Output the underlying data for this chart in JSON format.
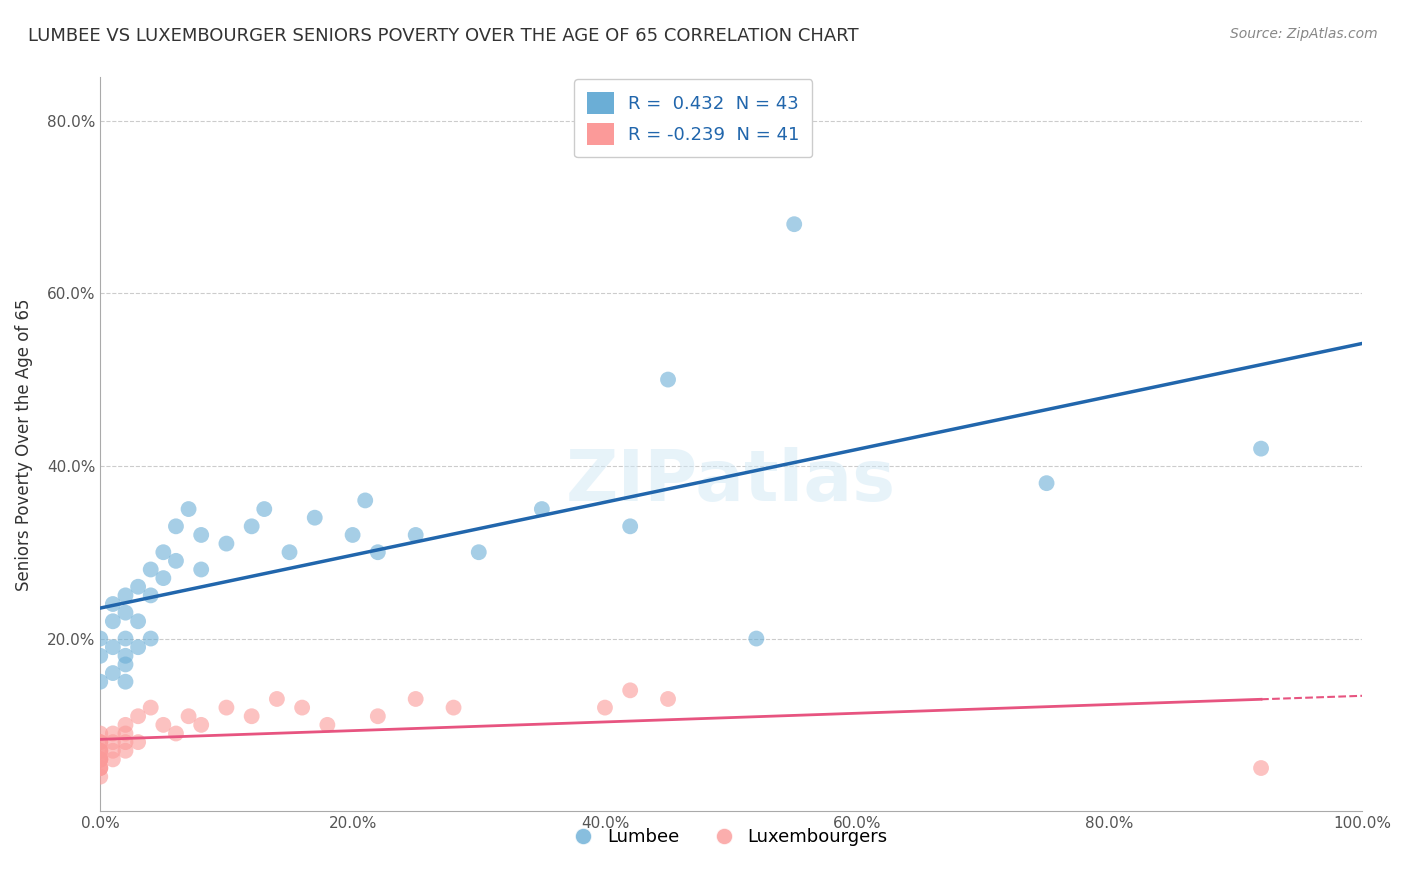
{
  "title": "LUMBEE VS LUXEMBOURGER SENIORS POVERTY OVER THE AGE OF 65 CORRELATION CHART",
  "source": "Source: ZipAtlas.com",
  "ylabel": "Seniors Poverty Over the Age of 65",
  "lumbee_color": "#6baed6",
  "luxembourger_color": "#fb9a99",
  "lumbee_line_color": "#2166ac",
  "luxembourger_line_color": "#e75480",
  "background_color": "#ffffff",
  "grid_color": "#cccccc",
  "legend_r_lumbee": "R =  0.432  N = 43",
  "legend_r_lux": "R = -0.239  N = 41",
  "xlim": [
    0,
    1.0
  ],
  "ylim": [
    0,
    0.85
  ],
  "xticks": [
    0.0,
    0.2,
    0.4,
    0.6,
    0.8,
    1.0
  ],
  "xticklabels": [
    "0.0%",
    "20.0%",
    "40.0%",
    "60.0%",
    "80.0%",
    "100.0%"
  ],
  "yticks": [
    0.0,
    0.2,
    0.4,
    0.6,
    0.8
  ],
  "yticklabels": [
    "",
    "20.0%",
    "40.0%",
    "60.0%",
    "80.0%"
  ],
  "lumbee_x": [
    0.0,
    0.0,
    0.0,
    0.01,
    0.01,
    0.01,
    0.01,
    0.02,
    0.02,
    0.02,
    0.02,
    0.02,
    0.02,
    0.03,
    0.03,
    0.03,
    0.04,
    0.04,
    0.04,
    0.05,
    0.05,
    0.06,
    0.06,
    0.07,
    0.08,
    0.08,
    0.1,
    0.12,
    0.13,
    0.15,
    0.17,
    0.2,
    0.21,
    0.22,
    0.25,
    0.3,
    0.35,
    0.42,
    0.45,
    0.52,
    0.55,
    0.75,
    0.92
  ],
  "lumbee_y": [
    0.18,
    0.2,
    0.15,
    0.22,
    0.24,
    0.19,
    0.16,
    0.23,
    0.25,
    0.2,
    0.18,
    0.15,
    0.17,
    0.26,
    0.22,
    0.19,
    0.28,
    0.25,
    0.2,
    0.3,
    0.27,
    0.33,
    0.29,
    0.35,
    0.32,
    0.28,
    0.31,
    0.33,
    0.35,
    0.3,
    0.34,
    0.32,
    0.36,
    0.3,
    0.32,
    0.3,
    0.35,
    0.33,
    0.5,
    0.2,
    0.68,
    0.38,
    0.42
  ],
  "luxembourger_x": [
    0.0,
    0.0,
    0.0,
    0.0,
    0.0,
    0.0,
    0.0,
    0.0,
    0.0,
    0.0,
    0.0,
    0.0,
    0.0,
    0.0,
    0.01,
    0.01,
    0.01,
    0.01,
    0.02,
    0.02,
    0.02,
    0.02,
    0.03,
    0.03,
    0.04,
    0.05,
    0.06,
    0.07,
    0.08,
    0.1,
    0.12,
    0.14,
    0.16,
    0.18,
    0.22,
    0.25,
    0.28,
    0.4,
    0.42,
    0.45,
    0.92
  ],
  "luxembourger_y": [
    0.05,
    0.06,
    0.07,
    0.08,
    0.05,
    0.06,
    0.07,
    0.04,
    0.06,
    0.08,
    0.09,
    0.07,
    0.05,
    0.06,
    0.08,
    0.07,
    0.09,
    0.06,
    0.1,
    0.08,
    0.07,
    0.09,
    0.11,
    0.08,
    0.12,
    0.1,
    0.09,
    0.11,
    0.1,
    0.12,
    0.11,
    0.13,
    0.12,
    0.1,
    0.11,
    0.13,
    0.12,
    0.12,
    0.14,
    0.13,
    0.05
  ]
}
